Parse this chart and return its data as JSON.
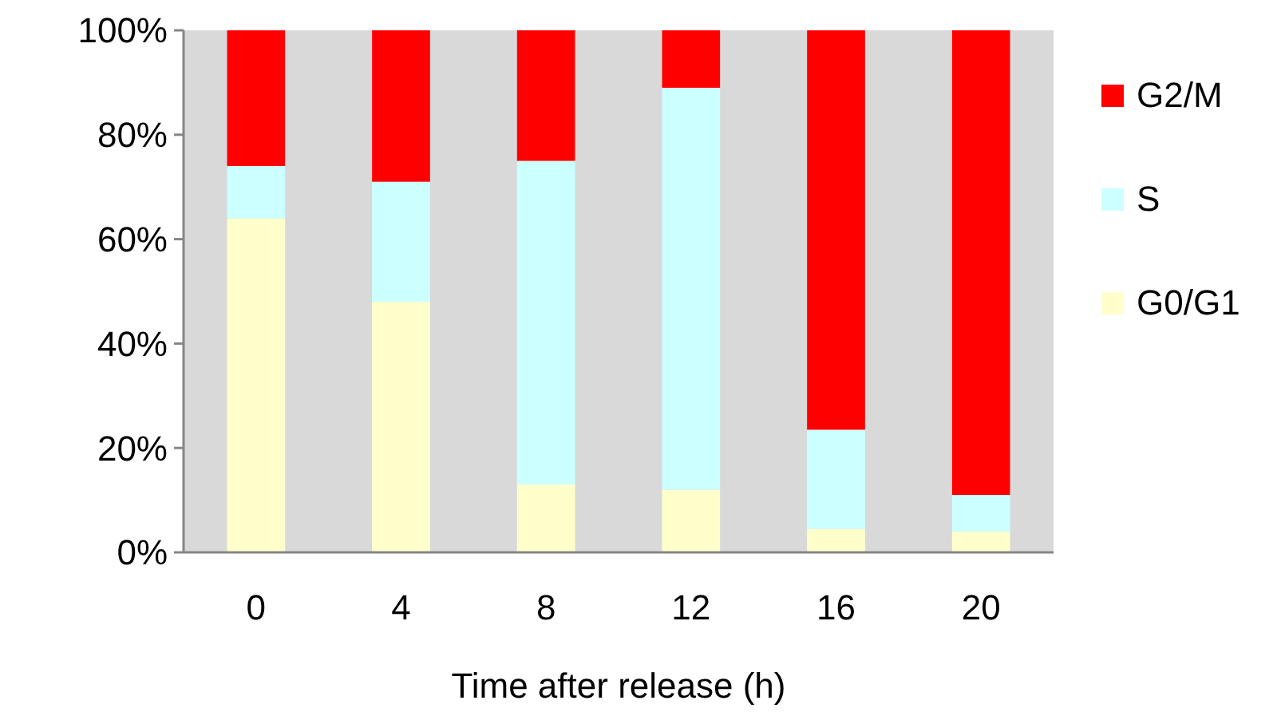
{
  "chart_data": {
    "type": "bar",
    "stacked": true,
    "xlabel": "Time after release (h)",
    "categories": [
      "0",
      "4",
      "8",
      "12",
      "16",
      "20"
    ],
    "series": [
      {
        "name": "G0/G1",
        "color": "#ffffcc",
        "values": [
          64,
          48,
          13,
          12,
          4.5,
          4
        ]
      },
      {
        "name": "S",
        "color": "#ccffff",
        "values": [
          10,
          23,
          62,
          77,
          19,
          7
        ]
      },
      {
        "name": "G2/M",
        "color": "#ff0000",
        "values": [
          26,
          29,
          25,
          11,
          76.5,
          89
        ]
      }
    ],
    "ylim": [
      0,
      100
    ],
    "yticks": [
      {
        "value": 0,
        "label": "0%"
      },
      {
        "value": 20,
        "label": "20%"
      },
      {
        "value": 40,
        "label": "40%"
      },
      {
        "value": 60,
        "label": "60%"
      },
      {
        "value": 80,
        "label": "80%"
      },
      {
        "value": 100,
        "label": "100%"
      }
    ],
    "legend": "right",
    "grid": false
  }
}
